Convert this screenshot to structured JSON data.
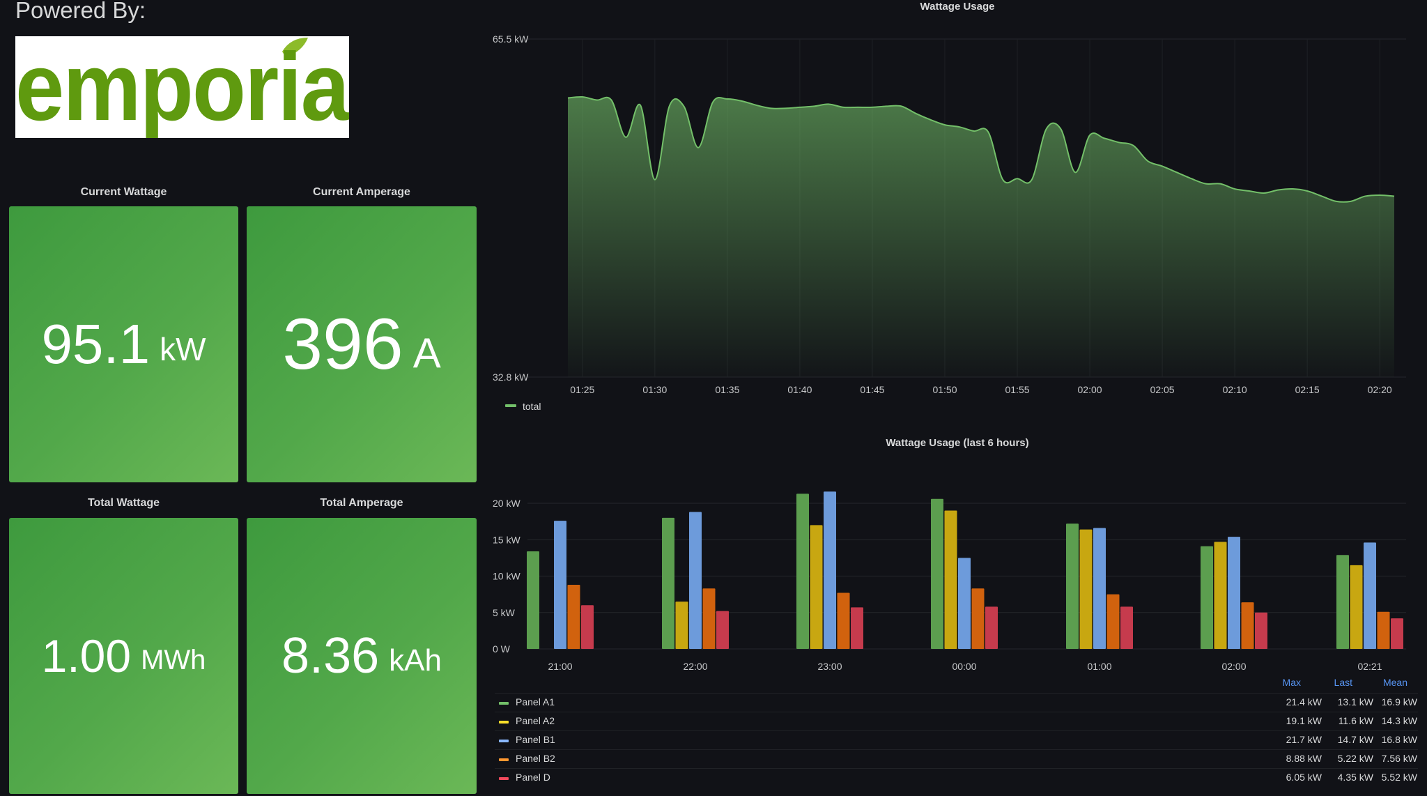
{
  "header": {
    "powered_by": "Powered By:",
    "logo_text": "emporia"
  },
  "stats": [
    {
      "title": "Current Wattage",
      "value": "95.1",
      "unit": "kW"
    },
    {
      "title": "Current Amperage",
      "value": "396",
      "unit": "A"
    },
    {
      "title": "Total Wattage",
      "value": "1.00",
      "unit": "MWh"
    },
    {
      "title": "Total Amperage",
      "value": "8.36",
      "unit": "kAh"
    }
  ],
  "legend_stats": {
    "headers": [
      "Max",
      "Last",
      "Mean"
    ],
    "rows": [
      {
        "name": "Panel A1",
        "color": "#73bf69",
        "max": "21.4 kW",
        "last": "13.1 kW",
        "mean": "16.9 kW"
      },
      {
        "name": "Panel A2",
        "color": "#fade2a",
        "max": "19.1 kW",
        "last": "11.6 kW",
        "mean": "14.3 kW"
      },
      {
        "name": "Panel B1",
        "color": "#8ab8ff",
        "max": "21.7 kW",
        "last": "14.7 kW",
        "mean": "16.8 kW"
      },
      {
        "name": "Panel B2",
        "color": "#ff9830",
        "max": "8.88 kW",
        "last": "5.22 kW",
        "mean": "7.56 kW"
      },
      {
        "name": "Panel D",
        "color": "#f2495c",
        "max": "6.05 kW",
        "last": "4.35 kW",
        "mean": "5.52 kW"
      }
    ]
  },
  "chart_data": [
    {
      "type": "area",
      "title": "Wattage Usage",
      "xlabel": "",
      "ylabel": "",
      "ylim": [
        32.8,
        65.5
      ],
      "y_tick_labels": [
        "65.5 kW",
        "32.8 kW"
      ],
      "start_time": "01:24",
      "x_tick_labels": [
        "01:25",
        "01:30",
        "01:35",
        "01:40",
        "01:45",
        "01:50",
        "01:55",
        "02:00",
        "02:05",
        "02:10",
        "02:15",
        "02:20"
      ],
      "x_minutes": [
        0,
        1,
        2,
        3,
        4,
        5,
        6,
        7,
        8,
        9,
        10,
        11,
        12,
        13,
        14,
        15,
        16,
        17,
        18,
        19,
        20,
        21,
        22,
        23,
        24,
        25,
        26,
        27,
        28,
        29,
        30,
        31,
        32,
        33,
        34,
        35,
        36,
        37,
        38,
        39,
        40,
        41,
        42,
        43,
        44,
        45,
        46,
        47,
        48,
        49,
        50,
        51,
        52,
        53,
        54,
        55,
        56,
        57
      ],
      "series": [
        {
          "name": "total",
          "color": "#73bf69",
          "values": [
            59.8,
            59.9,
            59.6,
            59.6,
            56.0,
            59.1,
            51.9,
            59.0,
            59.0,
            55.0,
            59.4,
            59.7,
            59.5,
            59.1,
            58.8,
            58.8,
            58.9,
            59.0,
            59.2,
            58.9,
            58.9,
            58.9,
            59.0,
            59.0,
            58.3,
            57.7,
            57.2,
            57.0,
            56.6,
            56.5,
            51.9,
            52.0,
            51.9,
            56.8,
            56.8,
            52.6,
            56.2,
            55.9,
            55.5,
            55.2,
            53.7,
            53.2,
            52.6,
            52.0,
            51.5,
            51.5,
            51.0,
            50.8,
            50.6,
            50.9,
            51.0,
            50.8,
            50.3,
            49.8,
            49.8,
            50.3,
            50.4,
            50.3
          ]
        }
      ],
      "legend": "bottom-left",
      "grid": true
    },
    {
      "type": "bar",
      "title": "Wattage Usage (last 6 hours)",
      "categories": [
        "21:00",
        "22:00",
        "23:00",
        "00:00",
        "01:00",
        "02:00",
        "02:21"
      ],
      "ylim": [
        0,
        22
      ],
      "y_ticks": [
        0,
        5,
        10,
        15,
        20
      ],
      "y_tick_labels": [
        "0 W",
        "5 kW",
        "10 kW",
        "15 kW",
        "20 kW"
      ],
      "series": [
        {
          "name": "Panel A1",
          "color": "#5c9e4f",
          "values": [
            13.4,
            18.0,
            21.3,
            20.6,
            17.2,
            14.1,
            12.9
          ]
        },
        {
          "name": "Panel A2",
          "color": "#c8a711",
          "values": [
            null,
            6.5,
            17.0,
            19.0,
            16.4,
            14.7,
            11.5
          ]
        },
        {
          "name": "Panel B1",
          "color": "#6d9bdb",
          "values": [
            17.6,
            18.8,
            21.6,
            12.5,
            16.6,
            15.4,
            14.6
          ]
        },
        {
          "name": "Panel B2",
          "color": "#d1620e",
          "values": [
            8.8,
            8.3,
            7.7,
            8.3,
            7.5,
            6.4,
            5.1
          ]
        },
        {
          "name": "Panel D",
          "color": "#c63b4d",
          "values": [
            6.0,
            5.2,
            5.7,
            5.8,
            5.8,
            5.0,
            4.2
          ]
        }
      ],
      "legend": "bottom",
      "grid": true
    }
  ]
}
